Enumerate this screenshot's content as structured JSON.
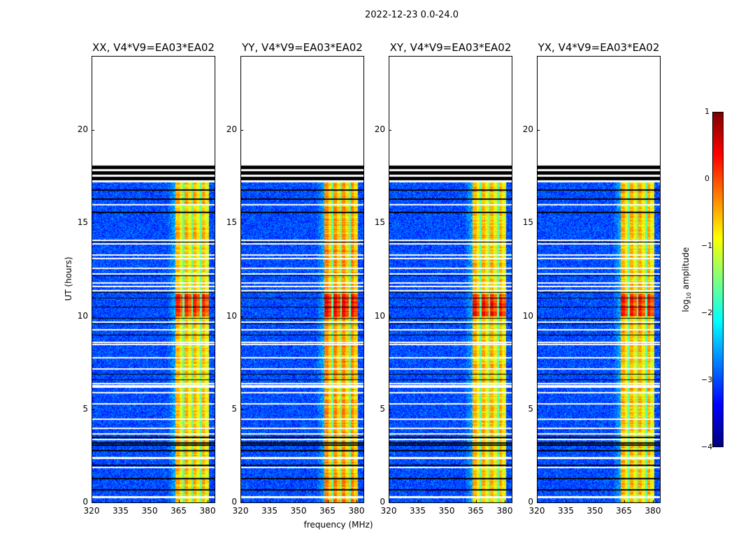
{
  "chart_data": {
    "type": "heatmap",
    "title": "2022-12-23 0.0-24.0",
    "xlabel": "frequency (MHz)",
    "ylabel": "UT (hours)",
    "xlim": [
      320,
      384
    ],
    "ylim": [
      0,
      24
    ],
    "xticks": [
      "320",
      "335",
      "350",
      "365",
      "380"
    ],
    "yticks": [
      "0",
      "5",
      "10",
      "15",
      "20"
    ],
    "panels": [
      {
        "title": "XX, V4*V9=EA03*EA02"
      },
      {
        "title": "YY, V4*V9=EA03*EA02"
      },
      {
        "title": "XY, V4*V9=EA03*EA02"
      },
      {
        "title": "YX, V4*V9=EA03*EA02"
      }
    ],
    "data_range_hours": [
      0,
      17.2
    ],
    "flagged_hours": [
      [
        17.2,
        18.2
      ]
    ],
    "bright_band_mhz": [
      363,
      380
    ],
    "background_log_amp": -3,
    "band_log_amp": -0.7,
    "peak_hours": [
      10,
      11.2
    ],
    "colorbar": {
      "label": "log10 amplitude",
      "label_main": "log",
      "label_sub": "10",
      "label_rest": " amplitude",
      "colormap": "jet",
      "range": [
        -4,
        1
      ],
      "ticks": [
        "1",
        "0",
        "−1",
        "−2",
        "−3",
        "−4"
      ]
    }
  }
}
